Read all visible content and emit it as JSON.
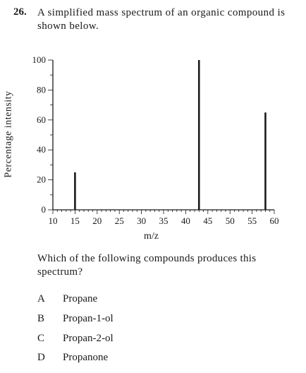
{
  "question": {
    "number": "26.",
    "text": "A simplified mass spectrum of an organic compound is shown below.",
    "prompt": "Which of the following compounds produces this spectrum?",
    "options": [
      {
        "letter": "A",
        "text": "Propane"
      },
      {
        "letter": "B",
        "text": "Propan-1-ol"
      },
      {
        "letter": "C",
        "text": "Propan-2-ol"
      },
      {
        "letter": "D",
        "text": "Propanone"
      }
    ]
  },
  "chart_data": {
    "type": "bar",
    "xlabel": "m/z",
    "ylabel": "Percentage intensity",
    "xlim": [
      10,
      60
    ],
    "ylim": [
      0,
      100
    ],
    "x_ticks": [
      10,
      15,
      20,
      25,
      30,
      35,
      40,
      45,
      50,
      55,
      60
    ],
    "y_ticks": [
      0,
      20,
      40,
      60,
      80,
      100
    ],
    "x_minor_step": 1,
    "y_minor_step": 10,
    "peaks": [
      {
        "mz": 15,
        "intensity": 25
      },
      {
        "mz": 43,
        "intensity": 100
      },
      {
        "mz": 58,
        "intensity": 65
      }
    ],
    "grid": false
  }
}
